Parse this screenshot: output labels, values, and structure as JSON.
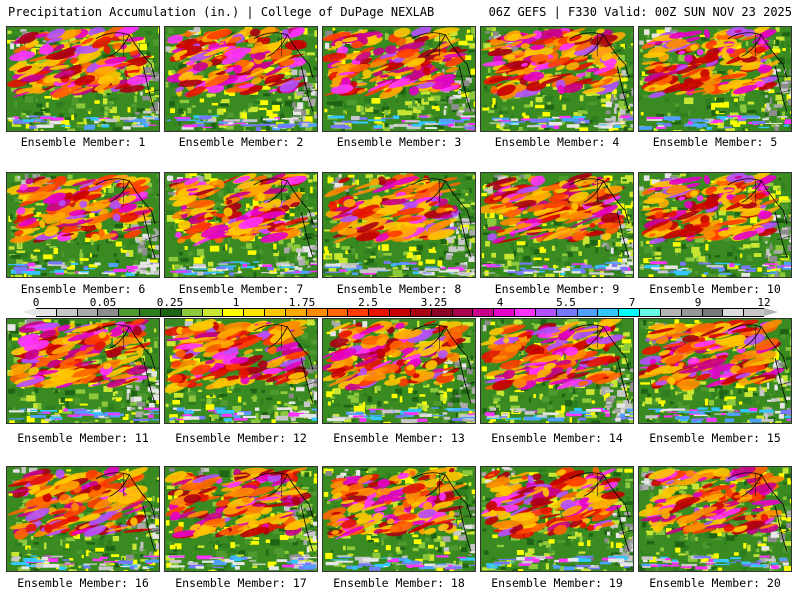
{
  "header": {
    "left_title": "Precipitation Accumulation (in.) | College of DuPage NEXLAB",
    "right_title": "06Z GEFS | F330 Valid: 00Z SUN NOV 23 2025"
  },
  "members": [
    "Ensemble Member: 1",
    "Ensemble Member: 2",
    "Ensemble Member: 3",
    "Ensemble Member: 4",
    "Ensemble Member: 5",
    "Ensemble Member: 6",
    "Ensemble Member: 7",
    "Ensemble Member: 8",
    "Ensemble Member: 9",
    "Ensemble Member: 10",
    "Ensemble Member: 11",
    "Ensemble Member: 12",
    "Ensemble Member: 13",
    "Ensemble Member: 14",
    "Ensemble Member: 15",
    "Ensemble Member: 16",
    "Ensemble Member: 17",
    "Ensemble Member: 18",
    "Ensemble Member: 19",
    "Ensemble Member: 20"
  ],
  "colorbar": {
    "labels": [
      "0",
      "0.05",
      "0.25",
      "1",
      "1.75",
      "2.5",
      "3.25",
      "4",
      "5.5",
      "7",
      "9",
      "12"
    ],
    "colors": [
      "#e6e6e6",
      "#c8c8c8",
      "#aaaaaa",
      "#8c8c8c",
      "#4e9a2e",
      "#2e7d1e",
      "#1e6414",
      "#8cc83c",
      "#c8e632",
      "#ffff00",
      "#ffe600",
      "#ffc800",
      "#ffaa00",
      "#ff8c00",
      "#ff6400",
      "#ff3c00",
      "#e61400",
      "#c80000",
      "#aa0014",
      "#8c0028",
      "#aa0050",
      "#c8008c",
      "#e600c8",
      "#ff32ff",
      "#b450ff",
      "#7878ff",
      "#50a0ff",
      "#32c8ff",
      "#00ffff",
      "#64ffe6",
      "#b4b4b4",
      "#969696",
      "#787878",
      "#dcdcdc",
      "#c8c8c8"
    ]
  }
}
